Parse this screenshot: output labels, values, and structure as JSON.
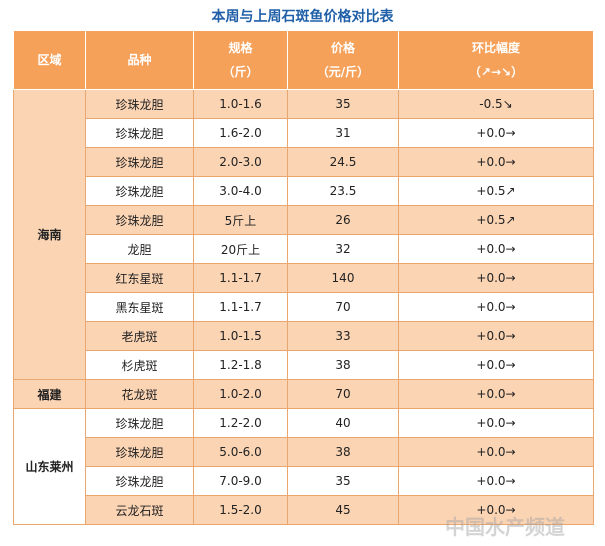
{
  "header": {
    "title": "本周与上周石斑鱼价格对比表"
  },
  "table": {
    "columns": [
      {
        "line1": "区域"
      },
      {
        "line1": "品种"
      },
      {
        "line1": "规格",
        "line2": "（斤）"
      },
      {
        "line1": "价格",
        "line2": "（元/斤）"
      },
      {
        "line1": "环比幅度",
        "line2": "（↗→↘）"
      }
    ],
    "groups": [
      {
        "region": "海南",
        "rows": [
          [
            "珍珠龙胆",
            "1.0-1.6",
            35,
            "-0.5↘"
          ],
          [
            "珍珠龙胆",
            "1.6-2.0",
            31,
            "+0.0→"
          ],
          [
            "珍珠龙胆",
            "2.0-3.0",
            24.5,
            "+0.0→"
          ],
          [
            "珍珠龙胆",
            "3.0-4.0",
            23.5,
            "+0.5↗"
          ],
          [
            "珍珠龙胆",
            "5斤上",
            26,
            "+0.5↗"
          ],
          [
            "龙胆",
            "20斤上",
            32,
            "+0.0→"
          ],
          [
            "红东星斑",
            "1.1-1.7",
            140,
            "+0.0→"
          ],
          [
            "黑东星斑",
            "1.1-1.7",
            70,
            "+0.0→"
          ],
          [
            "老虎斑",
            "1.0-1.5",
            33,
            "+0.0→"
          ],
          [
            "杉虎斑",
            "1.2-1.8",
            38,
            "+0.0→"
          ]
        ]
      },
      {
        "region": "福建",
        "rows": [
          [
            "花龙斑",
            "1.0-2.0",
            70,
            "+0.0→"
          ]
        ]
      },
      {
        "region": "山东莱州",
        "rows": [
          [
            "珍珠龙胆",
            "1.2-2.0",
            40,
            "+0.0→"
          ],
          [
            "珍珠龙胆",
            "5.0-6.0",
            38,
            "+0.0→"
          ],
          [
            "珍珠龙胆",
            "7.0-9.0",
            35,
            "+0.0→"
          ],
          [
            "云龙石斑",
            "1.5-2.0",
            45,
            "+0.0→"
          ]
        ]
      }
    ]
  },
  "watermark": "中国水产频道"
}
